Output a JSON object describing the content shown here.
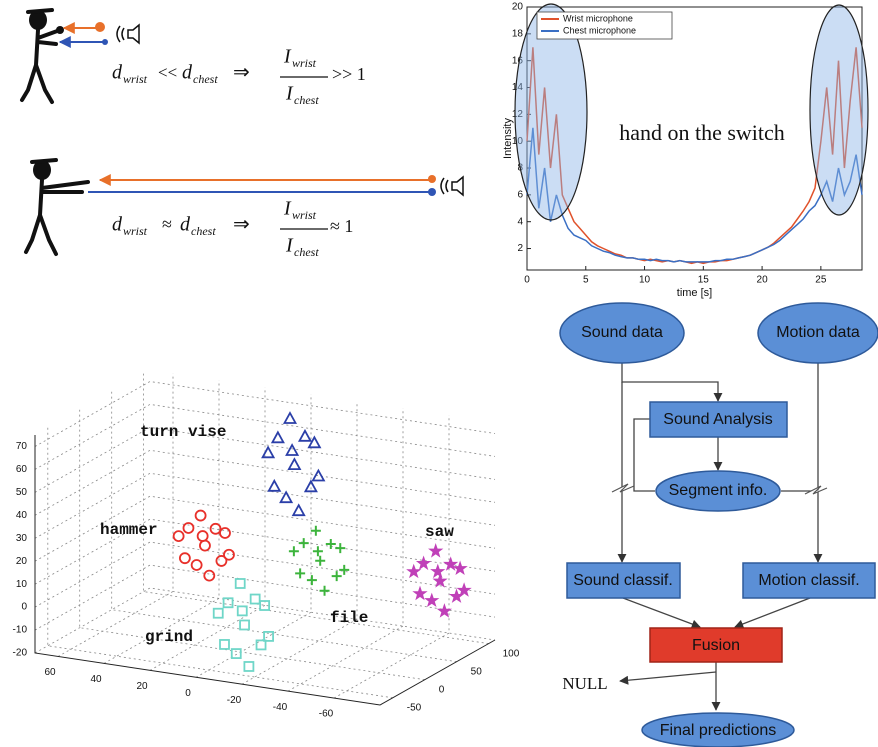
{
  "formulas": [
    {
      "d1": "d",
      "d1_sub": "wrist",
      "relation": "<<",
      "d2": "d",
      "d2_sub": "chest",
      "implies": "⇒",
      "num": "I",
      "num_sub": "wrist",
      "den": "I",
      "den_sub": "chest",
      "result": ">> 1"
    },
    {
      "d1": "d",
      "d1_sub": "wrist",
      "relation": "≈",
      "d2": "d",
      "d2_sub": "chest",
      "implies": "⇒",
      "num": "I",
      "num_sub": "wrist",
      "den": "I",
      "den_sub": "chest",
      "result": "≈ 1"
    }
  ],
  "chart_data": [
    {
      "type": "line",
      "y_label": "Intensity",
      "x_label": "time [s]",
      "annotation": "hand on the switch",
      "legend": "upper left",
      "x": [
        0,
        0.5,
        1,
        1.5,
        2,
        2.5,
        3,
        3.5,
        4,
        4.5,
        5,
        5.5,
        6,
        6.5,
        7,
        7.5,
        8,
        8.5,
        9,
        9.5,
        10,
        10.5,
        11,
        11.5,
        12,
        12.5,
        13,
        13.5,
        14,
        14.5,
        15,
        15.5,
        16,
        16.5,
        17,
        17.5,
        18,
        18.5,
        19,
        19.5,
        20,
        20.5,
        21,
        21.5,
        22,
        22.5,
        23,
        23.5,
        24,
        24.5,
        25,
        25.5,
        26,
        26.5,
        27,
        27.5,
        28,
        28.5
      ],
      "series": [
        {
          "name": "Wrist microphone",
          "color": "#e0522b",
          "values": [
            10,
            17,
            9,
            14,
            8,
            12,
            6,
            5,
            4,
            3.5,
            3,
            2.5,
            2.2,
            2,
            1.8,
            1.6,
            1.5,
            1.3,
            1.3,
            1.2,
            1.1,
            1.2,
            1.1,
            1,
            1.1,
            1,
            1.1,
            1,
            0.9,
            1,
            0.9,
            1,
            1,
            1.1,
            1.1,
            1.2,
            1.3,
            1.4,
            1.5,
            1.7,
            1.9,
            2.1,
            2.4,
            2.8,
            3.2,
            3.6,
            4.2,
            4.8,
            5.5,
            6.5,
            10,
            14,
            9,
            16,
            8,
            13,
            17,
            11
          ]
        },
        {
          "name": "Chest microphone",
          "color": "#3a6fc4",
          "values": [
            6,
            11,
            5,
            8,
            4,
            6,
            4.5,
            3.5,
            3,
            2.8,
            2.6,
            2.2,
            2,
            1.8,
            1.7,
            1.5,
            1.4,
            1.3,
            1.3,
            1.2,
            1.2,
            1.1,
            1.2,
            1.1,
            1.1,
            1,
            1.1,
            1,
            1,
            1,
            1,
            1,
            1.1,
            1.1,
            1.2,
            1.2,
            1.3,
            1.4,
            1.5,
            1.7,
            1.9,
            2.1,
            2.3,
            2.6,
            3,
            3.4,
            3.8,
            4.2,
            4.8,
            5.2,
            6,
            7,
            5.5,
            8,
            6,
            7,
            9,
            6
          ]
        }
      ],
      "xlim": [
        0,
        28.5
      ],
      "ylim": [
        0.4,
        20
      ],
      "xticks": [
        0,
        5,
        10,
        15,
        20,
        25
      ],
      "yticks": [
        2,
        4,
        6,
        8,
        10,
        12,
        14,
        16,
        18,
        20
      ]
    },
    {
      "type": "scatter3d",
      "grid": true,
      "xlim": [
        -80,
        70
      ],
      "ylim": [
        -70,
        110
      ],
      "zlim": [
        -20,
        75
      ],
      "xticks": [
        -60,
        -40,
        -20,
        0,
        20,
        40,
        60
      ],
      "yticks": [
        -50,
        0,
        50,
        100
      ],
      "zticks": [
        -20,
        -10,
        0,
        10,
        20,
        30,
        40,
        50,
        60,
        70
      ],
      "series": [
        {
          "name": "turn vise",
          "color": "#2b3fa8",
          "marker": "triangle",
          "points": [
            [
              -15,
              30,
              59
            ],
            [
              -7,
              33,
              69
            ],
            [
              -23,
              27,
              51
            ],
            [
              -10,
              35,
              43
            ],
            [
              -21,
              25,
              73
            ],
            [
              -3,
              32,
              62
            ],
            [
              -26,
              28,
              56
            ],
            [
              -12,
              34,
              78
            ],
            [
              -18,
              26,
              40
            ],
            [
              -6,
              31,
              48
            ],
            [
              -24,
              29,
              70
            ],
            [
              -14,
              30,
              65
            ]
          ]
        },
        {
          "name": "hammer",
          "color": "#e8302a",
          "marker": "circle",
          "points": [
            [
              10,
              -20,
              28
            ],
            [
              18,
              -17,
              34
            ],
            [
              2,
              -23,
              23
            ],
            [
              15,
              -15,
              18
            ],
            [
              4,
              -25,
              37
            ],
            [
              22,
              -18,
              30
            ],
            [
              -1,
              -22,
              26
            ],
            [
              13,
              -16,
              40
            ],
            [
              7,
              -24,
              16
            ],
            [
              19,
              -19,
              21
            ],
            [
              1,
              -21,
              35
            ],
            [
              11,
              -20,
              32
            ]
          ]
        },
        {
          "name": "file",
          "color": "#3cb43c",
          "marker": "plus",
          "points": [
            [
              -29,
              20,
              21
            ],
            [
              -21,
              23,
              27
            ],
            [
              -37,
              17,
              16
            ],
            [
              -24,
              25,
              11
            ],
            [
              -35,
              15,
              30
            ],
            [
              -17,
              22,
              23
            ],
            [
              -40,
              18,
              19
            ],
            [
              -26,
              24,
              33
            ],
            [
              -32,
              16,
              9
            ],
            [
              -20,
              21,
              14
            ],
            [
              -38,
              19,
              28
            ],
            [
              -28,
              20,
              25
            ]
          ]
        },
        {
          "name": "saw",
          "color": "#c040b8",
          "marker": "star",
          "points": [
            [
              -70,
              60,
              12
            ],
            [
              -62,
              63,
              18
            ],
            [
              -78,
              57,
              7
            ],
            [
              -65,
              65,
              2
            ],
            [
              -76,
              55,
              21
            ],
            [
              -58,
              62,
              14
            ],
            [
              -81,
              58,
              10
            ],
            [
              -67,
              64,
              24
            ],
            [
              -73,
              56,
              0
            ],
            [
              -61,
              61,
              5
            ],
            [
              -79,
              59,
              19
            ],
            [
              -69,
              60,
              16
            ]
          ]
        },
        {
          "name": "grind",
          "color": "#6fd6c8",
          "marker": "square",
          "points": [
            [
              -10,
              -30,
              -2
            ],
            [
              -2,
              -27,
              6
            ],
            [
              -18,
              -33,
              -9
            ],
            [
              -5,
              -25,
              -16
            ],
            [
              -16,
              -35,
              11
            ],
            [
              2,
              -28,
              1
            ],
            [
              -21,
              -32,
              -5
            ],
            [
              -7,
              -26,
              15
            ],
            [
              -13,
              -34,
              -19
            ],
            [
              -1,
              -29,
              -12
            ],
            [
              -19,
              -31,
              8
            ],
            [
              -9,
              -30,
              4
            ]
          ]
        }
      ]
    }
  ],
  "flowchart": {
    "nodes": [
      "Sound data",
      "Motion data",
      "Sound Analysis",
      "Segment info.",
      "Sound classif.",
      "Motion classif.",
      "Fusion",
      "NULL",
      "Final predictions"
    ]
  }
}
